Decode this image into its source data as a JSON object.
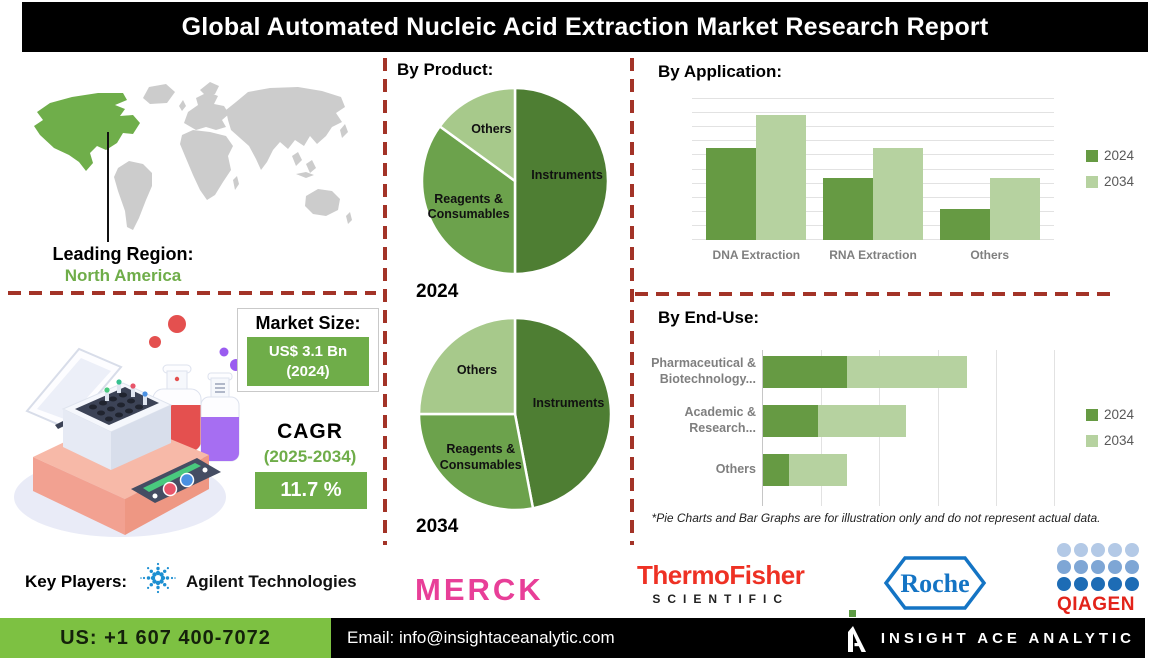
{
  "title": "Global Automated Nucleic Acid Extraction Market Research Report",
  "sections": {
    "by_product": "By Product:",
    "by_application": "By Application:",
    "by_end_use": "By End-Use:"
  },
  "map": {
    "leading_region_label": "Leading Region:",
    "leading_region_value": "North America"
  },
  "market_size": {
    "label": "Market Size:",
    "value": "US$ 3.1 Bn",
    "year": "(2024)"
  },
  "cagr": {
    "label": "CAGR",
    "period": "(2025-2034)",
    "value": "11.7 %"
  },
  "footnote": "*Pie Charts and Bar Graphs are for illustration only and do not represent actual data.",
  "key_players": {
    "label": "Key Players:",
    "agilent": "Agilent Technologies",
    "merck": "MERCK",
    "thermo_line1": "ThermoFisher",
    "thermo_line2": "SCIENTIFIC",
    "roche": "Roche",
    "qiagen": "QIAGEN"
  },
  "footer": {
    "phone": "US: +1 607 400-7072",
    "email": "Email: info@insightaceanalytic.com",
    "brand": "INSIGHT ACE ANALYTIC"
  },
  "colors": {
    "pie_dark_green": "#4e7e33",
    "pie_mid_green": "#6ca24c",
    "pie_light_green": "#a7c98b",
    "bar_2024": "#669a43",
    "bar_2034": "#b6d2a0",
    "divider_red": "#a33327",
    "accent_green_text": "#6fad49",
    "merck_pink": "#e83f98",
    "thermo_red": "#ee3124",
    "roche_blue": "#1474c4",
    "qiagen_red": "#e2231a",
    "footer_green": "#7dc142"
  },
  "chart_data": [
    {
      "type": "pie",
      "title": "2024",
      "labels": [
        "Instruments",
        "Reagents & Consumables",
        "Others"
      ],
      "values": [
        50,
        35,
        15
      ],
      "colors": [
        "#4e7e33",
        "#6ca24c",
        "#a7c98b"
      ]
    },
    {
      "type": "pie",
      "title": "2034",
      "labels": [
        "Instruments",
        "Reagents & Consumables",
        "Others"
      ],
      "values": [
        47,
        28,
        25
      ],
      "colors": [
        "#4e7e33",
        "#6ca24c",
        "#a7c98b"
      ]
    },
    {
      "type": "bar",
      "title": "By Application:",
      "categories": [
        "DNA Extraction",
        "RNA Extraction",
        "Others"
      ],
      "series": [
        {
          "name": "2024",
          "color": "#669a43",
          "values": [
            65,
            44,
            22
          ]
        },
        {
          "name": "2034",
          "color": "#b6d2a0",
          "values": [
            88,
            65,
            44
          ]
        }
      ],
      "ylim": [
        0,
        100
      ],
      "gridline_step": 10,
      "grid": true,
      "legend_position": "right"
    },
    {
      "type": "bar",
      "orientation": "horizontal",
      "stacked": true,
      "title": "By End-Use:",
      "categories": [
        "Pharmaceutical & Biotechnology...",
        "Academic & Research...",
        "Others"
      ],
      "series": [
        {
          "name": "2024",
          "color": "#669a43",
          "values": [
            1.45,
            0.95,
            0.45
          ]
        },
        {
          "name": "2034",
          "color": "#b6d2a0",
          "values": [
            2.05,
            1.5,
            1.0
          ]
        }
      ],
      "xlim": [
        0,
        5
      ],
      "gridline_step": 1,
      "grid": true,
      "legend_position": "right"
    }
  ]
}
